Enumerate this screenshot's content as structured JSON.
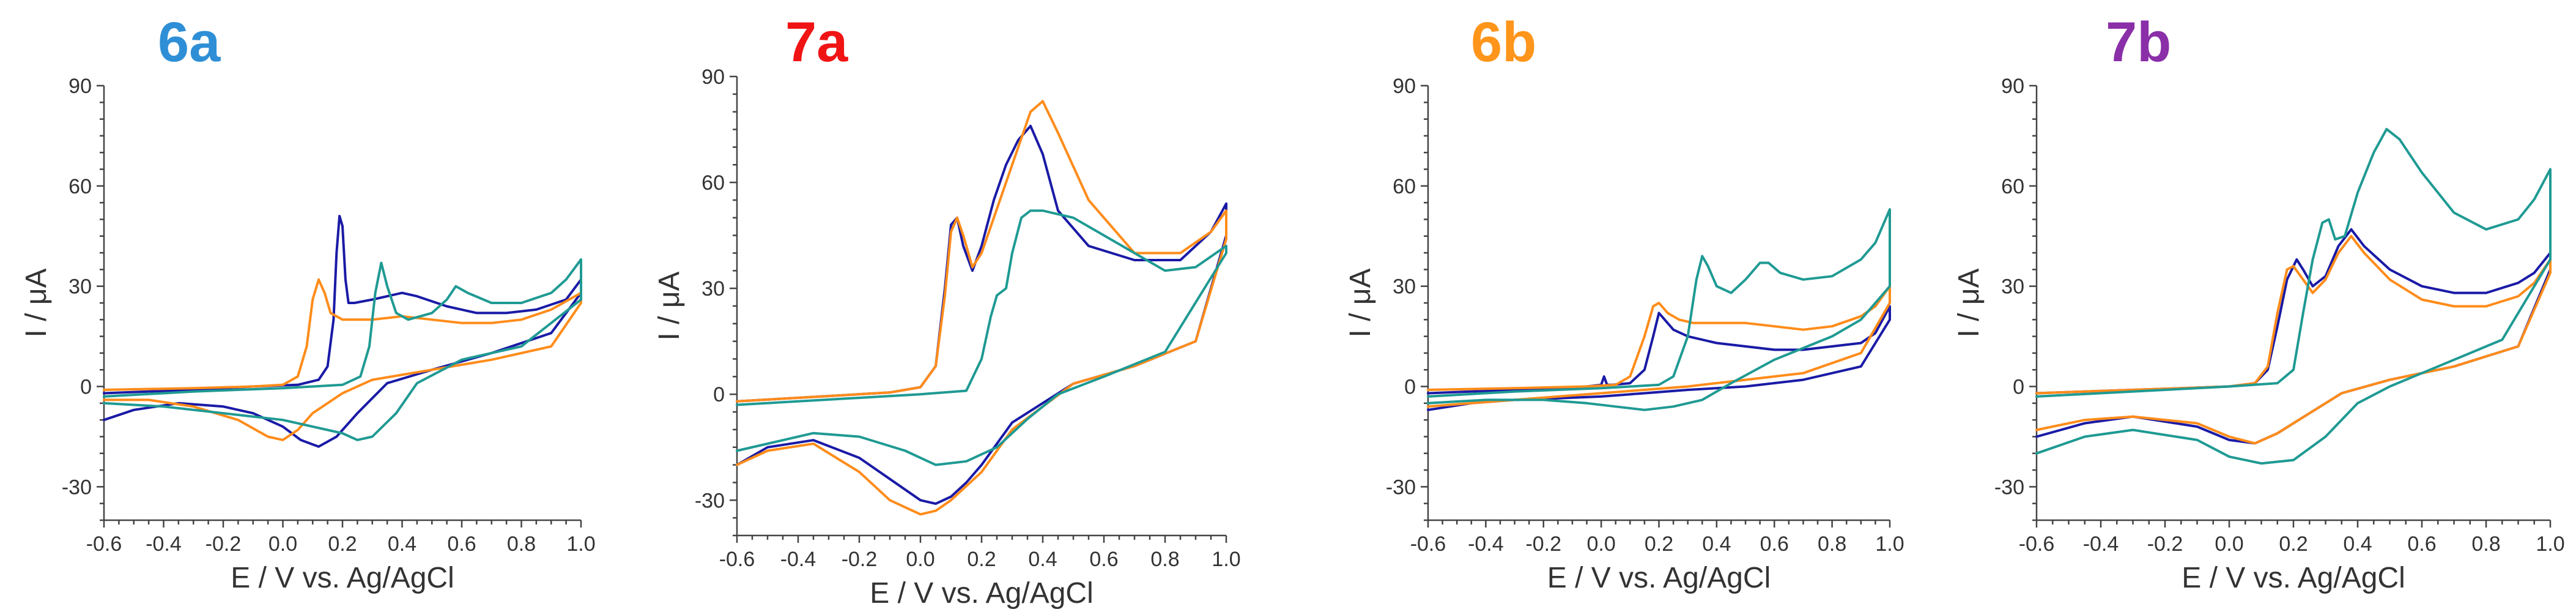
{
  "figure": {
    "background": "#ffffff"
  },
  "chart_data": [
    {
      "type": "line",
      "title": "6a",
      "title_color": "#2e8fd6",
      "xlabel": "E / V vs. Ag/AgCl",
      "ylabel": "I / μA",
      "xlim": [
        -0.6,
        1.0
      ],
      "ylim": [
        -40,
        90
      ],
      "xticks": [
        -0.6,
        -0.4,
        -0.2,
        0.0,
        0.2,
        0.4,
        0.6,
        0.8,
        1.0
      ],
      "xtick_labels": [
        "-0.6",
        "-0.4",
        "-0.2",
        "0.0",
        "0.2",
        "0.4",
        "0.6",
        "0.8",
        "1.0"
      ],
      "yticks": [
        -30,
        0,
        30,
        60,
        90
      ],
      "ytick_labels": [
        "-30",
        "0",
        "30",
        "60",
        "90"
      ],
      "grid": false,
      "series": [
        {
          "color": "#1a1aa6",
          "x": [
            -0.6,
            -0.3,
            -0.1,
            0.05,
            0.12,
            0.15,
            0.17,
            0.18,
            0.19,
            0.2,
            0.21,
            0.22,
            0.24,
            0.3,
            0.4,
            0.45,
            0.55,
            0.65,
            0.75,
            0.85,
            0.95,
            1.0,
            1.0,
            0.9,
            0.7,
            0.5,
            0.35,
            0.25,
            0.18,
            0.12,
            0.06,
            0,
            -0.1,
            -0.2,
            -0.35,
            -0.5,
            -0.6
          ],
          "y": [
            -2,
            -1,
            0,
            0.5,
            2,
            6,
            20,
            40,
            51,
            48,
            32,
            25,
            25,
            26,
            28,
            27,
            24,
            22,
            22,
            23,
            26,
            32,
            28,
            16,
            10,
            5,
            1,
            -8,
            -15,
            -18,
            -16,
            -12,
            -8,
            -6,
            -5,
            -7,
            -10
          ]
        },
        {
          "color": "#ff8c1a",
          "x": [
            -0.6,
            -0.3,
            -0.1,
            0,
            0.05,
            0.08,
            0.1,
            0.12,
            0.14,
            0.16,
            0.2,
            0.3,
            0.4,
            0.5,
            0.6,
            0.7,
            0.8,
            0.9,
            1.0,
            1.0,
            0.9,
            0.7,
            0.5,
            0.3,
            0.2,
            0.1,
            0.05,
            0,
            -0.05,
            -0.15,
            -0.3,
            -0.45,
            -0.6
          ],
          "y": [
            -1,
            -0.5,
            0,
            0.5,
            3,
            12,
            26,
            32,
            28,
            22,
            20,
            20,
            21,
            20,
            19,
            19,
            20,
            23,
            28,
            25,
            12,
            8,
            5,
            2,
            -2,
            -8,
            -13,
            -16,
            -15,
            -10,
            -6,
            -4,
            -4
          ]
        },
        {
          "color": "#1f9a93",
          "x": [
            -0.6,
            -0.3,
            0,
            0.2,
            0.26,
            0.29,
            0.31,
            0.33,
            0.35,
            0.38,
            0.42,
            0.5,
            0.55,
            0.58,
            0.62,
            0.7,
            0.8,
            0.9,
            0.95,
            1.0,
            1.0,
            0.8,
            0.6,
            0.45,
            0.38,
            0.3,
            0.25,
            0.2,
            0.1,
            0,
            -0.2,
            -0.4,
            -0.6
          ],
          "y": [
            -3,
            -1.5,
            -0.5,
            0.5,
            3,
            12,
            28,
            37,
            30,
            22,
            20,
            22,
            26,
            30,
            28,
            25,
            25,
            28,
            32,
            38,
            26,
            12,
            8,
            1,
            -8,
            -15,
            -16,
            -14,
            -12,
            -10,
            -8,
            -6,
            -5
          ]
        }
      ]
    },
    {
      "type": "line",
      "title": "7a",
      "title_color": "#f01414",
      "xlabel": "E / V vs. Ag/AgCl",
      "ylabel": "I / μA",
      "xlim": [
        -0.6,
        1.0
      ],
      "ylim": [
        -40,
        90
      ],
      "xticks": [
        -0.6,
        -0.4,
        -0.2,
        0.0,
        0.2,
        0.4,
        0.6,
        0.8,
        1.0
      ],
      "xtick_labels": [
        "-0.6",
        "-0.4",
        "-0.2",
        "0.0",
        "0.2",
        "0.4",
        "0.6",
        "0.8",
        "1.0"
      ],
      "yticks": [
        -30,
        0,
        30,
        60,
        90
      ],
      "ytick_labels": [
        "-30",
        "0",
        "30",
        "60",
        "90"
      ],
      "grid": false,
      "series": [
        {
          "color": "#1a1aa6",
          "x": [
            -0.6,
            -0.3,
            -0.1,
            0,
            0.05,
            0.08,
            0.1,
            0.12,
            0.14,
            0.17,
            0.2,
            0.24,
            0.28,
            0.32,
            0.36,
            0.4,
            0.45,
            0.55,
            0.7,
            0.85,
            0.95,
            1.0,
            1.0,
            0.9,
            0.7,
            0.5,
            0.3,
            0.2,
            0.15,
            0.1,
            0.05,
            0,
            -0.1,
            -0.2,
            -0.35,
            -0.5,
            -0.6
          ],
          "y": [
            -2,
            -0.5,
            0.5,
            2,
            8,
            30,
            48,
            50,
            42,
            35,
            42,
            55,
            65,
            72,
            76,
            68,
            52,
            42,
            38,
            38,
            46,
            54,
            45,
            15,
            8,
            3,
            -8,
            -20,
            -25,
            -29,
            -31,
            -30,
            -24,
            -18,
            -13,
            -15,
            -20
          ]
        },
        {
          "color": "#ff8c1a",
          "x": [
            -0.6,
            -0.3,
            -0.1,
            0,
            0.05,
            0.08,
            0.1,
            0.12,
            0.14,
            0.17,
            0.2,
            0.24,
            0.28,
            0.32,
            0.36,
            0.4,
            0.45,
            0.55,
            0.7,
            0.85,
            0.95,
            1.0,
            1.0,
            0.9,
            0.7,
            0.5,
            0.3,
            0.2,
            0.1,
            0.05,
            0,
            -0.1,
            -0.2,
            -0.35,
            -0.5,
            -0.6
          ],
          "y": [
            -2,
            -0.5,
            0.5,
            2,
            8,
            28,
            46,
            50,
            45,
            36,
            40,
            50,
            60,
            70,
            80,
            83,
            74,
            55,
            40,
            40,
            46,
            52,
            44,
            15,
            8,
            3,
            -10,
            -22,
            -30,
            -33,
            -34,
            -30,
            -22,
            -14,
            -16,
            -20
          ]
        },
        {
          "color": "#1f9a93",
          "x": [
            -0.6,
            -0.3,
            0,
            0.15,
            0.2,
            0.23,
            0.25,
            0.28,
            0.3,
            0.33,
            0.36,
            0.4,
            0.5,
            0.6,
            0.7,
            0.8,
            0.9,
            1.0,
            1.0,
            0.8,
            0.6,
            0.45,
            0.35,
            0.25,
            0.15,
            0.05,
            -0.05,
            -0.2,
            -0.35,
            -0.5,
            -0.6
          ],
          "y": [
            -3,
            -1.5,
            0,
            1,
            10,
            22,
            28,
            30,
            40,
            50,
            52,
            52,
            50,
            45,
            40,
            35,
            36,
            42,
            40,
            12,
            5,
            0,
            -7,
            -15,
            -19,
            -20,
            -16,
            -12,
            -11,
            -14,
            -16
          ]
        }
      ]
    },
    {
      "type": "line",
      "title": "6b",
      "title_color": "#ff951a",
      "xlabel": "E / V vs. Ag/AgCl",
      "ylabel": "I / μA",
      "xlim": [
        -0.6,
        1.0
      ],
      "ylim": [
        -40,
        90
      ],
      "xticks": [
        -0.6,
        -0.4,
        -0.2,
        0.0,
        0.2,
        0.4,
        0.6,
        0.8,
        1.0
      ],
      "xtick_labels": [
        "-0.6",
        "-0.4",
        "-0.2",
        "0.0",
        "0.2",
        "0.4",
        "0.6",
        "0.8",
        "1.0"
      ],
      "yticks": [
        -30,
        0,
        30,
        60,
        90
      ],
      "ytick_labels": [
        "-30",
        "0",
        "30",
        "60",
        "90"
      ],
      "grid": false,
      "series": [
        {
          "color": "#1a1aa6",
          "x": [
            -0.6,
            -0.3,
            -0.05,
            0,
            0.01,
            0.02,
            0.04,
            0.1,
            0.15,
            0.18,
            0.2,
            0.22,
            0.25,
            0.3,
            0.4,
            0.5,
            0.6,
            0.7,
            0.8,
            0.9,
            0.95,
            1.0,
            1.0,
            0.9,
            0.7,
            0.5,
            0.3,
            0.15,
            0,
            -0.15,
            -0.3,
            -0.45,
            -0.6
          ],
          "y": [
            -2,
            -1,
            0,
            0.5,
            3,
            0.5,
            0.5,
            1,
            5,
            15,
            22,
            20,
            17,
            15,
            13,
            12,
            11,
            11,
            12,
            13,
            16,
            24,
            20,
            6,
            2,
            0,
            -1,
            -2,
            -3,
            -3.5,
            -4,
            -5,
            -7
          ]
        },
        {
          "color": "#ff8c1a",
          "x": [
            -0.6,
            -0.3,
            -0.05,
            0.05,
            0.1,
            0.15,
            0.18,
            0.2,
            0.23,
            0.27,
            0.32,
            0.4,
            0.5,
            0.6,
            0.7,
            0.8,
            0.9,
            0.95,
            1.0,
            1.0,
            0.9,
            0.7,
            0.5,
            0.3,
            0.15,
            0,
            -0.15,
            -0.3,
            -0.45,
            -0.6
          ],
          "y": [
            -1,
            -0.5,
            0,
            0.5,
            3,
            15,
            24,
            25,
            22,
            20,
            19,
            19,
            19,
            18,
            17,
            18,
            21,
            24,
            30,
            25,
            10,
            4,
            2,
            0,
            -1,
            -2,
            -3,
            -4,
            -5,
            -6
          ]
        },
        {
          "color": "#1f9a93",
          "x": [
            -0.6,
            -0.3,
            0,
            0.2,
            0.25,
            0.3,
            0.33,
            0.35,
            0.37,
            0.4,
            0.45,
            0.5,
            0.55,
            0.58,
            0.62,
            0.7,
            0.8,
            0.9,
            0.95,
            1.0,
            1.0,
            0.9,
            0.8,
            0.6,
            0.45,
            0.35,
            0.25,
            0.15,
            0.05,
            -0.05,
            -0.2,
            -0.4,
            -0.6
          ],
          "y": [
            -3,
            -1.5,
            -0.5,
            0.5,
            3,
            15,
            32,
            39,
            36,
            30,
            28,
            32,
            37,
            37,
            34,
            32,
            33,
            38,
            43,
            53,
            30,
            20,
            15,
            8,
            1,
            -4,
            -6,
            -7,
            -6,
            -5,
            -4,
            -4,
            -5
          ]
        }
      ]
    },
    {
      "type": "line",
      "title": "7b",
      "title_color": "#8a2fa8",
      "xlabel": "E / V vs. Ag/AgCl",
      "ylabel": "I / μA",
      "xlim": [
        -0.6,
        1.0
      ],
      "ylim": [
        -40,
        90
      ],
      "xticks": [
        -0.6,
        -0.4,
        -0.2,
        0.0,
        0.2,
        0.4,
        0.6,
        0.8,
        1.0
      ],
      "xtick_labels": [
        "-0.6",
        "-0.4",
        "-0.2",
        "0.0",
        "0.2",
        "0.4",
        "0.6",
        "0.8",
        "1.0"
      ],
      "yticks": [
        -30,
        0,
        30,
        60,
        90
      ],
      "ytick_labels": [
        "-30",
        "0",
        "30",
        "60",
        "90"
      ],
      "grid": false,
      "series": [
        {
          "color": "#1a1aa6",
          "x": [
            -0.6,
            -0.3,
            0,
            0.08,
            0.12,
            0.15,
            0.18,
            0.21,
            0.23,
            0.26,
            0.3,
            0.34,
            0.38,
            0.42,
            0.5,
            0.6,
            0.7,
            0.8,
            0.9,
            0.95,
            1.0,
            1.0,
            0.9,
            0.7,
            0.5,
            0.35,
            0.25,
            0.15,
            0.08,
            0,
            -0.1,
            -0.3,
            -0.45,
            -0.6
          ],
          "y": [
            -2,
            -1,
            0,
            1,
            5,
            18,
            32,
            38,
            35,
            30,
            33,
            42,
            47,
            42,
            35,
            30,
            28,
            28,
            31,
            34,
            40,
            35,
            12,
            6,
            2,
            -2,
            -8,
            -14,
            -17,
            -16,
            -12,
            -9,
            -11,
            -15
          ]
        },
        {
          "color": "#ff8c1a",
          "x": [
            -0.6,
            -0.3,
            0,
            0.08,
            0.12,
            0.15,
            0.18,
            0.2,
            0.23,
            0.26,
            0.3,
            0.34,
            0.38,
            0.42,
            0.5,
            0.6,
            0.7,
            0.8,
            0.9,
            0.95,
            1.0,
            1.0,
            0.9,
            0.7,
            0.5,
            0.35,
            0.25,
            0.15,
            0.08,
            0,
            -0.1,
            -0.3,
            -0.45,
            -0.6
          ],
          "y": [
            -2,
            -1,
            0,
            1,
            6,
            22,
            35,
            36,
            32,
            28,
            32,
            40,
            45,
            40,
            32,
            26,
            24,
            24,
            27,
            31,
            38,
            34,
            12,
            6,
            2,
            -2,
            -8,
            -14,
            -17,
            -15,
            -11,
            -9,
            -10,
            -13
          ]
        },
        {
          "color": "#1f9a93",
          "x": [
            -0.6,
            -0.3,
            0,
            0.15,
            0.2,
            0.23,
            0.26,
            0.29,
            0.31,
            0.33,
            0.36,
            0.4,
            0.45,
            0.49,
            0.53,
            0.6,
            0.7,
            0.8,
            0.9,
            0.95,
            1.0,
            1.0,
            0.85,
            0.65,
            0.5,
            0.4,
            0.3,
            0.2,
            0.1,
            0,
            -0.1,
            -0.3,
            -0.45,
            -0.6
          ],
          "y": [
            -3,
            -1.5,
            0,
            1,
            5,
            22,
            38,
            49,
            50,
            44,
            45,
            58,
            70,
            77,
            74,
            64,
            52,
            47,
            50,
            56,
            65,
            38,
            14,
            6,
            0,
            -5,
            -15,
            -22,
            -23,
            -21,
            -16,
            -13,
            -15,
            -20
          ]
        }
      ]
    }
  ]
}
